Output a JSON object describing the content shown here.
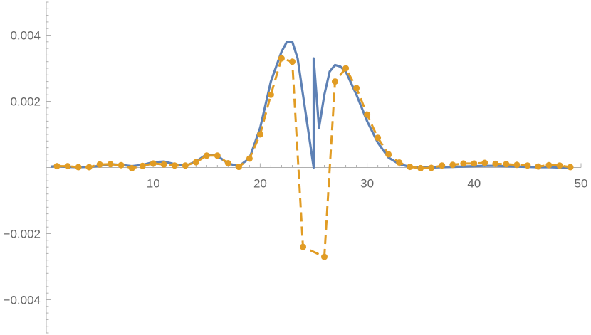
{
  "chart_data": {
    "type": "line",
    "title": "",
    "xlabel": "",
    "ylabel": "",
    "xlim": [
      0,
      50
    ],
    "ylim": [
      -0.005,
      0.005
    ],
    "x_ticks": [
      10,
      20,
      30,
      40,
      50
    ],
    "x_tick_labels": [
      "10",
      "20",
      "30",
      "40",
      "50"
    ],
    "y_ticks": [
      -0.004,
      -0.002,
      0.002,
      0.004
    ],
    "y_tick_labels": [
      "-0.004",
      "-0.002",
      "0.002",
      "0.004"
    ],
    "grid": false,
    "legend": "none",
    "series": [
      {
        "style": "solid-line",
        "color": "#5e81b5",
        "x": [
          0.5,
          1,
          2,
          3,
          4,
          5,
          6,
          7,
          8,
          9,
          10,
          11,
          12,
          13,
          14,
          15,
          16,
          17,
          18,
          19,
          20,
          21,
          22,
          22.5,
          23,
          23.5,
          24,
          24.5,
          25,
          25,
          25.5,
          26,
          26.5,
          27,
          27.5,
          28,
          29,
          30,
          31,
          32,
          33,
          34,
          35,
          36,
          37,
          38,
          39,
          40,
          41,
          42,
          43,
          44,
          45,
          46,
          47,
          48,
          49
        ],
        "y": [
          3e-05,
          4e-05,
          2e-05,
          1e-05,
          2e-05,
          5e-05,
          0.0001,
          8e-05,
          4e-05,
          8e-05,
          0.00016,
          0.00018,
          0.0001,
          5e-05,
          0.00018,
          0.0004,
          0.00035,
          0.00012,
          4e-05,
          0.00028,
          0.0012,
          0.0026,
          0.0035,
          0.0038,
          0.0038,
          0.0033,
          0.0022,
          0.0011,
          0,
          0.0033,
          0.0012,
          0.0022,
          0.0029,
          0.0031,
          0.00305,
          0.0029,
          0.0022,
          0.0014,
          0.00075,
          0.0003,
          0.0001,
          2e-05,
          0,
          0,
          1e-05,
          2e-05,
          3e-05,
          4e-05,
          5e-05,
          5e-05,
          4e-05,
          3e-05,
          2e-05,
          1e-05,
          1e-05,
          0,
          0
        ]
      },
      {
        "style": "dashed-markers",
        "color": "#e19c24",
        "x": [
          1,
          2,
          3,
          4,
          5,
          6,
          7,
          8,
          9,
          10,
          11,
          12,
          13,
          14,
          15,
          16,
          17,
          18,
          19,
          20,
          21,
          22,
          23,
          24,
          26,
          27,
          28,
          29,
          30,
          31,
          32,
          33,
          34,
          35,
          36,
          37,
          38,
          39,
          40,
          41,
          42,
          43,
          44,
          45,
          46,
          47,
          48,
          49
        ],
        "y": [
          4e-05,
          4e-05,
          1e-05,
          1e-05,
          9e-05,
          0.0001,
          7e-05,
          -2e-05,
          5e-05,
          0.00012,
          9e-05,
          6e-05,
          6e-05,
          0.00016,
          0.00036,
          0.00036,
          0.00013,
          2e-05,
          0.00027,
          0.001,
          0.0022,
          0.0033,
          0.0032,
          -0.0024,
          -0.0027,
          0.0026,
          0.003,
          0.0024,
          0.0016,
          0.0009,
          0.0004,
          0.00015,
          2e-05,
          -2e-05,
          -1e-05,
          6e-05,
          8e-05,
          0.00012,
          0.00012,
          0.00014,
          0.00011,
          0.0001,
          8e-05,
          6e-05,
          3e-05,
          7e-05,
          6e-05,
          1e-05
        ]
      }
    ]
  }
}
